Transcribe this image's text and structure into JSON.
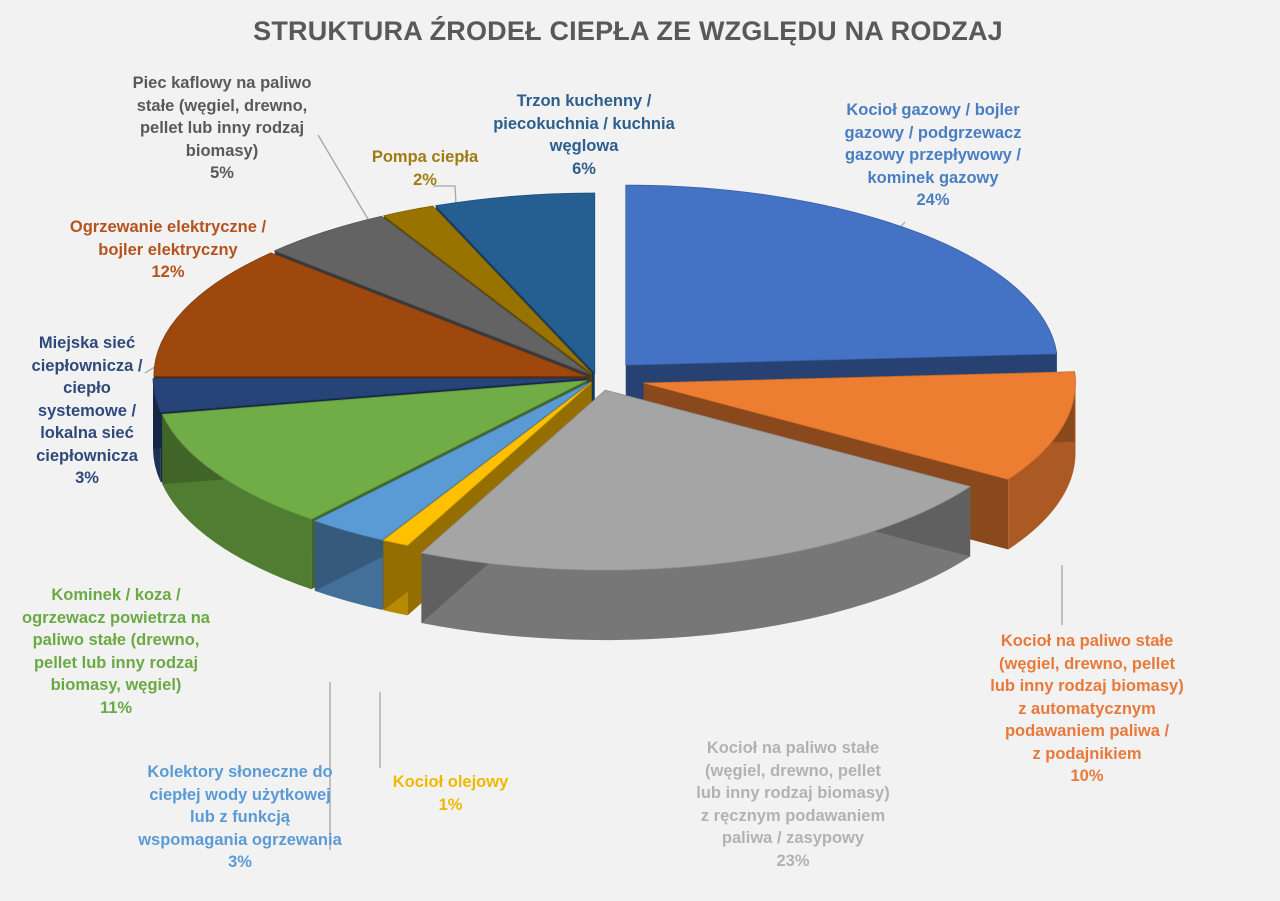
{
  "chart_data": {
    "type": "pie",
    "title": "STRUKTURA ŹRODEŁ CIEPŁA ZE WZGLĘDU NA RODZAJ",
    "slices": [
      {
        "label": "Kocioł gazowy / bojler\ngazowy / podgrzewacz\ngazowy przepływowy /\nkominek gazowy",
        "value": 24,
        "value_label": "24%",
        "color": "#4472c4",
        "label_color": "#4a7ec2"
      },
      {
        "label": "Kocioł na paliwo stałe\n(węgiel, drewno, pellet\nlub inny rodzaj  biomasy)\nz automatycznym\npodawaniem paliwa /\nz podajnikiem",
        "value": 10,
        "value_label": "10%",
        "color": "#ed7d31",
        "label_color": "#e8793a"
      },
      {
        "label": "Kocioł na paliwo stałe\n(węgiel, drewno, pellet\nlub inny rodzaj biomasy)\nz ręcznym podawaniem\npaliwa / zasypowy",
        "value": 23,
        "value_label": "23%",
        "color": "#a5a5a5",
        "label_color": "#b2b2b2"
      },
      {
        "label": "Kocioł olejowy",
        "value": 1,
        "value_label": "1%",
        "color": "#ffc000",
        "label_color": "#f0b800"
      },
      {
        "label": "Kolektory słoneczne do\nciepłej wody użytkowej\nlub z funkcją\nwspomagania ogrzewania",
        "value": 3,
        "value_label": "3%",
        "color": "#5b9bd5",
        "label_color": "#5b9bd5"
      },
      {
        "label": "Kominek / koza /\nogrzewacz powietrza na\npaliwo stałe (drewno,\npellet lub inny rodzaj\nbiomasy, węgiel)",
        "value": 11,
        "value_label": "11%",
        "color": "#70ad47",
        "label_color": "#6aaa44"
      },
      {
        "label": "Miejska sieć\nciepłownicza /\nciepło\nsystemowe /\nlokalna sieć\nciepłownicza",
        "value": 3,
        "value_label": "3%",
        "color": "#264478",
        "label_color": "#2e4a7a"
      },
      {
        "label": "Ogrzewanie elektryczne /\nbojler elektryczny",
        "value": 12,
        "value_label": "12%",
        "color": "#9e480e",
        "label_color": "#b5531e"
      },
      {
        "label": "Piec kaflowy na paliwo\nstałe (węgiel, drewno,\npellet lub inny rodzaj\nbiomasy)",
        "value": 5,
        "value_label": "5%",
        "color": "#636363",
        "label_color": "#595959"
      },
      {
        "label": "Pompa ciepła",
        "value": 2,
        "value_label": "2%",
        "color": "#997300",
        "label_color": "#a07c10"
      },
      {
        "label": "Trzon kuchenny /\npiecokuchnia / kuchnia\nwęglowa",
        "value": 6,
        "value_label": "6%",
        "color": "#255e91",
        "label_color": "#2c5f8e"
      }
    ]
  }
}
